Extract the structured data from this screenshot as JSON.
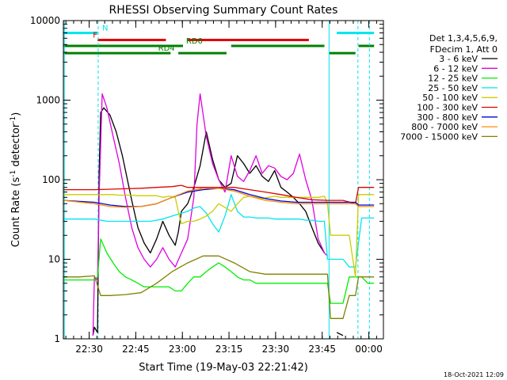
{
  "chart_data": {
    "type": "line",
    "title": "RHESSI Observing Summary Count Rates",
    "xlabel": "Start Time (19-May-03 22:21:42)",
    "ylabel": "Count Rate (s⁻¹ detector⁻¹)",
    "ylabel_main": "Count Rate (s",
    "ylabel_sup1": "-1",
    "ylabel_mid": " detector",
    "ylabel_sup2": "-1",
    "ylabel_end": ")",
    "yscale": "log",
    "ylim": [
      1,
      10000
    ],
    "xlim_minutes": [
      0,
      103
    ],
    "x_ticks": [
      {
        "label": "22:30",
        "t": 8.3
      },
      {
        "label": "22:45",
        "t": 23.3
      },
      {
        "label": "23:00",
        "t": 38.3
      },
      {
        "label": "23:15",
        "t": 53.3
      },
      {
        "label": "23:30",
        "t": 68.3
      },
      {
        "label": "23:45",
        "t": 83.3
      },
      {
        "label": "00:00",
        "t": 98.3
      }
    ],
    "y_ticks": [
      {
        "label": "1",
        "v": 1
      },
      {
        "label": "10",
        "v": 10
      },
      {
        "label": "100",
        "v": 100
      },
      {
        "label": "1000",
        "v": 1000
      },
      {
        "label": "10000",
        "v": 10000
      }
    ],
    "legend_header": [
      "Det 1,3,4,5,6,9,",
      "FDecim 1, Att 0"
    ],
    "legend_position": "right",
    "timestamp": "18-Oct-2021 12:09",
    "flags": [
      {
        "label": "N",
        "color": "#00e5ee",
        "level": 7000,
        "segments": [
          [
            0,
            11
          ],
          [
            88,
            100
          ]
        ],
        "label_t": 12.5
      },
      {
        "label": "F",
        "color": "#e00000",
        "level": 5700,
        "segments": [
          [
            11,
            33
          ],
          [
            40,
            79
          ]
        ],
        "label_t": 9.5
      },
      {
        "label": "RD0",
        "color": "#008000",
        "level": 4800,
        "segments": [
          [
            0,
            38.5
          ],
          [
            54,
            84
          ],
          [
            95,
            100
          ]
        ],
        "label_t": 39.5
      },
      {
        "label": "RD4",
        "color": "#008000",
        "level": 3900,
        "segments": [
          [
            0,
            34.5
          ],
          [
            37,
            52.5
          ],
          [
            85.5,
            94
          ]
        ],
        "label_t": 30.5
      }
    ],
    "vlines": [
      {
        "t": 0.3,
        "color": "#00e5ee",
        "style": "solid"
      },
      {
        "t": 11.2,
        "color": "#00e5ee",
        "style": "dashed"
      },
      {
        "t": 85.5,
        "color": "#00e5ee",
        "style": "solid"
      },
      {
        "t": 94.8,
        "color": "#00e5ee",
        "style": "dashed"
      },
      {
        "t": 98.5,
        "color": "#00e5ee",
        "style": "dashed"
      }
    ],
    "series": [
      {
        "name": "3 - 6 keV",
        "color": "#000000",
        "x": [
          0,
          5,
          8,
          9.5,
          10,
          11,
          11.5,
          12,
          13,
          15,
          17,
          19,
          22,
          24,
          26,
          28,
          30,
          32,
          34,
          36,
          37,
          38,
          40,
          42,
          44,
          46,
          48,
          50,
          52,
          54,
          56,
          58,
          60,
          62,
          64,
          66,
          68,
          70,
          72,
          74,
          76,
          78,
          80,
          82,
          84,
          85,
          86,
          88,
          90,
          92,
          94,
          96,
          98,
          100
        ],
        "y": [
          null,
          null,
          null,
          1.1,
          1.4,
          1.2,
          120,
          700,
          800,
          650,
          400,
          200,
          55,
          25,
          16,
          12,
          18,
          30,
          20,
          15,
          22,
          40,
          50,
          80,
          150,
          400,
          180,
          100,
          80,
          90,
          200,
          160,
          120,
          150,
          110,
          95,
          130,
          80,
          70,
          60,
          50,
          40,
          25,
          16,
          12,
          null,
          null,
          1.2,
          1.1,
          null,
          null,
          null,
          null,
          null
        ]
      },
      {
        "name": "6 - 12 keV",
        "color": "#e000e0",
        "x": [
          0,
          8,
          9.5,
          10,
          11,
          11.5,
          12.5,
          14,
          16,
          18,
          20,
          22,
          24,
          26,
          28,
          30,
          32,
          34,
          36,
          38,
          40,
          42,
          43,
          44,
          46,
          48,
          50,
          52,
          54,
          56,
          58,
          60,
          62,
          64,
          66,
          68,
          70,
          72,
          74,
          76,
          78,
          80,
          82,
          84,
          85
        ],
        "y": [
          null,
          null,
          1.1,
          6,
          5.5,
          60,
          1200,
          800,
          350,
          160,
          60,
          25,
          14,
          10,
          8,
          10,
          14,
          10,
          8,
          12,
          18,
          60,
          500,
          1200,
          350,
          160,
          100,
          70,
          200,
          110,
          95,
          130,
          200,
          120,
          150,
          140,
          110,
          100,
          120,
          210,
          100,
          55,
          18,
          12,
          11
        ]
      },
      {
        "name": "12 - 25 keV",
        "color": "#00ee00",
        "x": [
          0,
          5,
          10,
          11,
          12,
          14,
          16,
          18,
          20,
          22,
          24,
          26,
          28,
          30,
          32,
          34,
          36,
          38,
          40,
          42,
          44,
          46,
          48,
          50,
          52,
          54,
          56,
          58,
          60,
          62,
          64,
          66,
          68,
          70,
          72,
          74,
          76,
          78,
          80,
          82,
          84,
          85,
          86,
          88,
          90,
          92,
          94,
          96,
          98,
          100
        ],
        "y": [
          5.5,
          5.5,
          5.5,
          6,
          18,
          12,
          9,
          7,
          6,
          5.5,
          5,
          4.5,
          4.5,
          4.5,
          4.5,
          4.5,
          4,
          4,
          5,
          6,
          6,
          7,
          8,
          9,
          8,
          7,
          6,
          5.5,
          5.5,
          5,
          5,
          5,
          5,
          5,
          5,
          5,
          5,
          5,
          5,
          5,
          5,
          5,
          2.8,
          2.8,
          2.8,
          6,
          6,
          6,
          5,
          5
        ]
      },
      {
        "name": "25 - 50 keV",
        "color": "#00e5ee",
        "x": [
          0,
          10,
          12,
          14,
          16,
          18,
          20,
          22,
          24,
          26,
          28,
          30,
          32,
          34,
          36,
          38,
          40,
          42,
          44,
          46,
          48,
          50,
          52,
          54,
          56,
          58,
          60,
          62,
          64,
          66,
          68,
          70,
          72,
          74,
          76,
          78,
          80,
          82,
          84,
          85,
          86,
          88,
          90,
          92,
          94,
          96,
          98,
          100
        ],
        "y": [
          32,
          32,
          31,
          30,
          30,
          30,
          30,
          30,
          30,
          30,
          30,
          31,
          32,
          34,
          36,
          38,
          40,
          44,
          46,
          38,
          28,
          22,
          35,
          65,
          40,
          34,
          34,
          33,
          33,
          33,
          32,
          32,
          32,
          32,
          32,
          31,
          31,
          30,
          30,
          10,
          10,
          10,
          10,
          8,
          8,
          33,
          33,
          33
        ]
      },
      {
        "name": "50 - 100 keV",
        "color": "#cccc00",
        "x": [
          0,
          10,
          12,
          14,
          16,
          18,
          20,
          22,
          24,
          26,
          28,
          30,
          32,
          34,
          36,
          37,
          38,
          40,
          42,
          44,
          46,
          48,
          50,
          52,
          54,
          56,
          58,
          60,
          62,
          64,
          66,
          68,
          70,
          72,
          74,
          76,
          78,
          80,
          82,
          84,
          85,
          86,
          88,
          90,
          92,
          94,
          95,
          96,
          98,
          100
        ],
        "y": [
          65,
          65,
          65,
          65,
          65,
          64,
          64,
          64,
          63,
          63,
          63,
          63,
          60,
          62,
          60,
          40,
          28,
          30,
          30,
          32,
          35,
          40,
          50,
          45,
          40,
          50,
          60,
          62,
          60,
          58,
          60,
          62,
          60,
          60,
          60,
          60,
          60,
          60,
          60,
          62,
          50,
          20,
          20,
          20,
          20,
          6,
          65,
          65,
          65,
          65
        ]
      },
      {
        "name": "100 - 300 keV",
        "color": "#e00000",
        "x": [
          0,
          10,
          15,
          20,
          25,
          30,
          35,
          38,
          40,
          45,
          50,
          55,
          60,
          65,
          70,
          75,
          80,
          85,
          90,
          94,
          95,
          96,
          100
        ],
        "y": [
          75,
          75,
          76,
          77,
          78,
          80,
          82,
          85,
          80,
          80,
          80,
          80,
          75,
          70,
          65,
          60,
          56,
          55,
          55,
          50,
          80,
          80,
          80
        ]
      },
      {
        "name": "300 - 800 keV",
        "color": "#0000e0",
        "x": [
          0,
          10,
          15,
          20,
          25,
          30,
          35,
          40,
          45,
          50,
          55,
          60,
          65,
          70,
          75,
          80,
          85,
          90,
          94,
          95,
          100
        ],
        "y": [
          55,
          52,
          48,
          46,
          46,
          50,
          60,
          70,
          75,
          78,
          75,
          65,
          58,
          54,
          52,
          52,
          52,
          52,
          52,
          48,
          48
        ]
      },
      {
        "name": "800 - 7000 keV",
        "color": "#ff8c00",
        "x": [
          0,
          10,
          15,
          20,
          25,
          30,
          35,
          40,
          45,
          50,
          55,
          60,
          65,
          70,
          75,
          80,
          85,
          90,
          94,
          95,
          100
        ],
        "y": [
          55,
          50,
          46,
          45,
          46,
          50,
          60,
          72,
          78,
          78,
          72,
          62,
          55,
          52,
          50,
          50,
          50,
          50,
          50,
          46,
          46
        ]
      },
      {
        "name": "7000 - 15000 keV",
        "color": "#808000",
        "x": [
          0,
          5,
          10,
          12,
          15,
          20,
          25,
          30,
          35,
          40,
          45,
          50,
          55,
          60,
          65,
          70,
          75,
          80,
          84,
          85,
          86,
          88,
          90,
          92,
          94,
          95,
          96,
          100
        ],
        "y": [
          6,
          6,
          6.2,
          3.5,
          3.5,
          3.6,
          3.8,
          5,
          7,
          9,
          11,
          11,
          9,
          7,
          6.5,
          6.5,
          6.5,
          6.5,
          6.5,
          6.5,
          1.8,
          1.8,
          1.8,
          3.5,
          3.5,
          6,
          6,
          6
        ]
      }
    ]
  }
}
